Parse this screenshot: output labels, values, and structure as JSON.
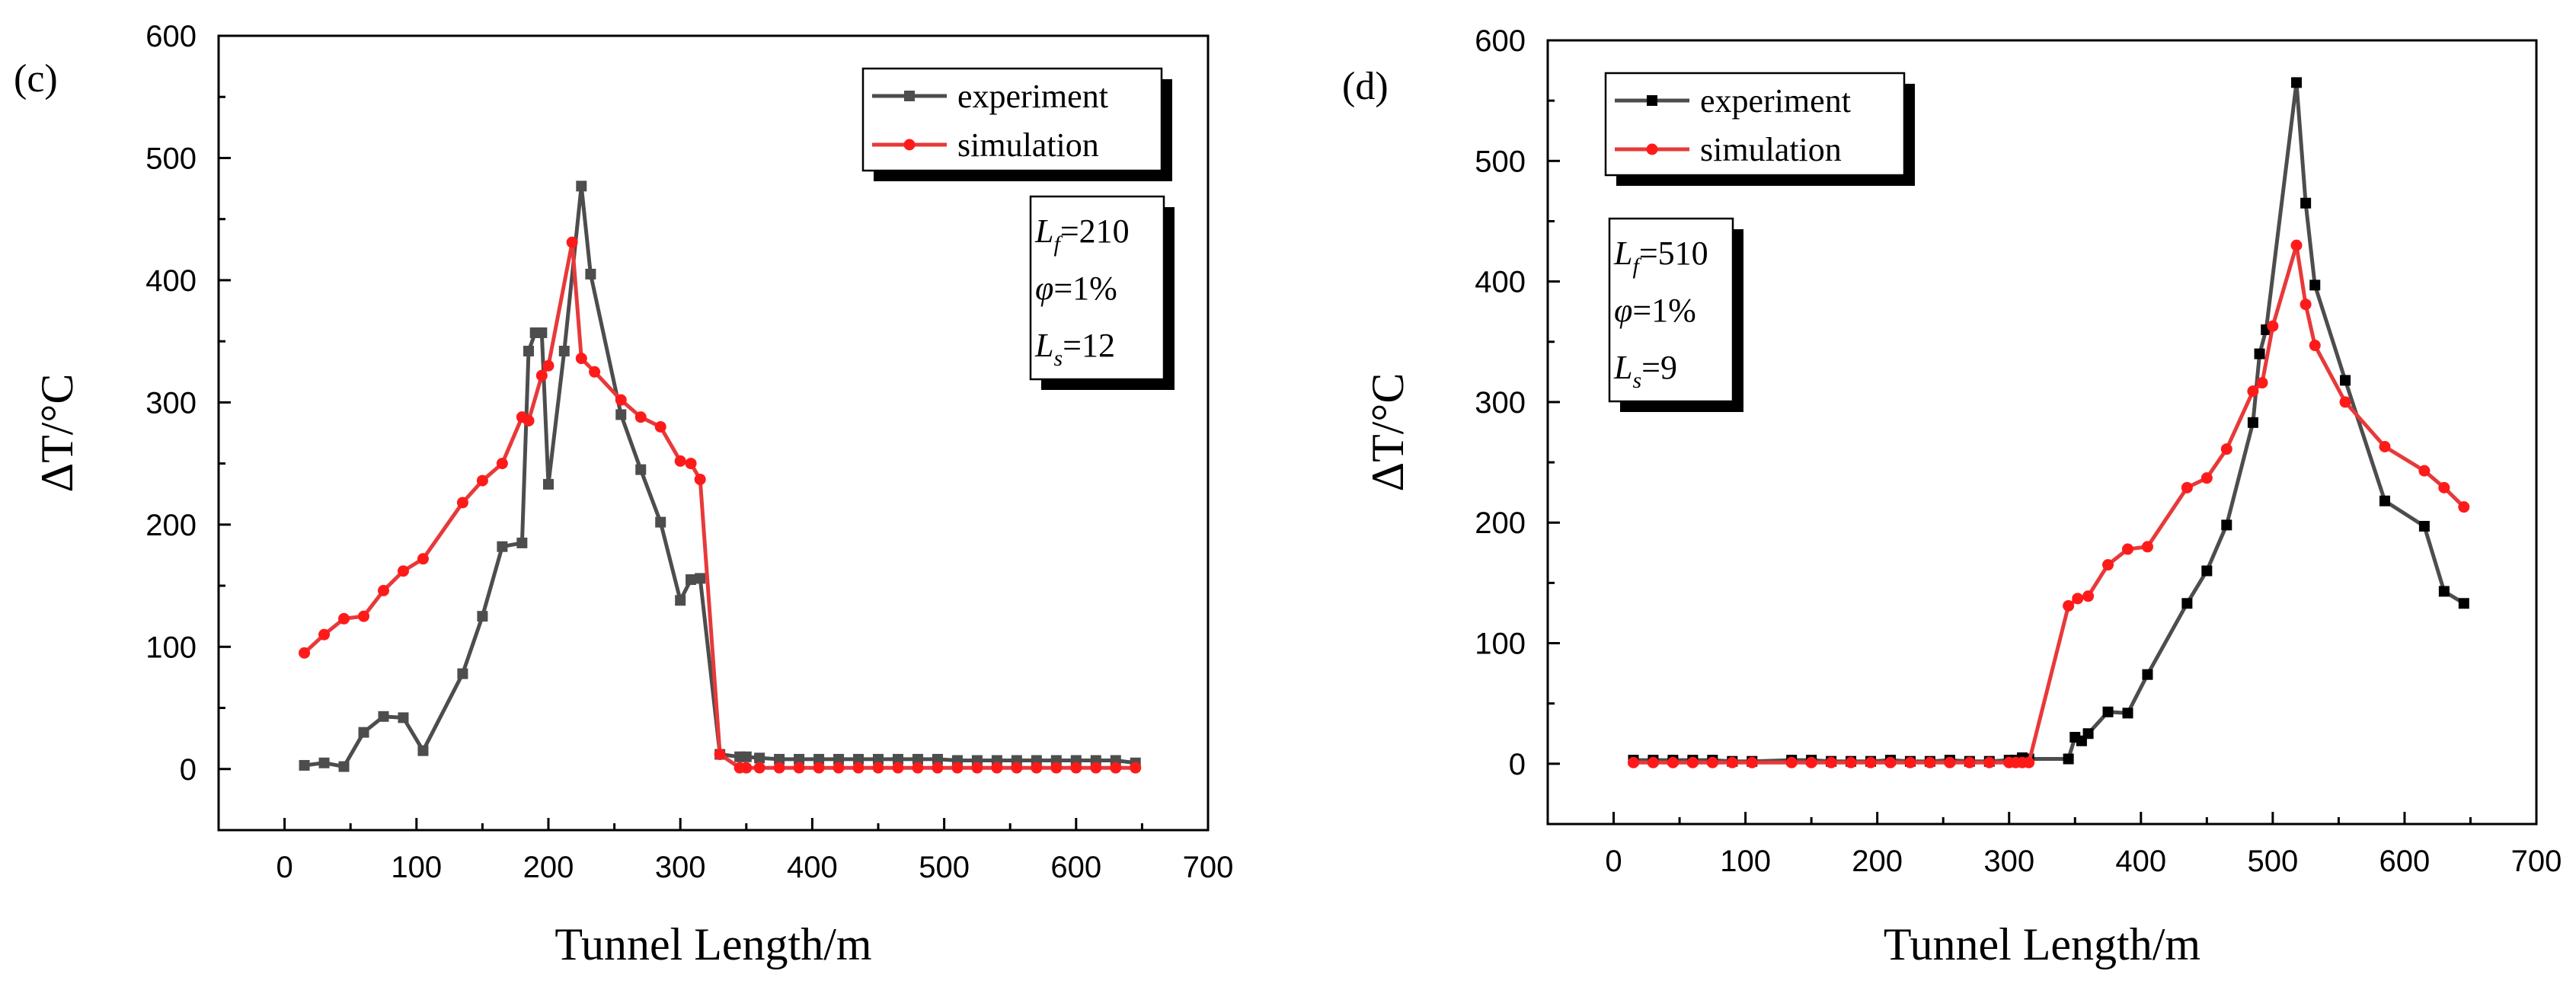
{
  "chart_data": [
    {
      "type": "line",
      "panel_label": "(c)",
      "xlabel": "Tunnel Length/m",
      "ylabel": "ΔT/°C",
      "xlim": [
        -50,
        700
      ],
      "ylim": [
        -50,
        600
      ],
      "xticks": [
        "0",
        "100",
        "200",
        "300",
        "400",
        "500",
        "600",
        "700"
      ],
      "yticks": [
        "0",
        "100",
        "200",
        "300",
        "400",
        "500",
        "600"
      ],
      "legend": {
        "position": "top-right",
        "entries": [
          "experiment",
          "simulation"
        ]
      },
      "params": [
        {
          "sym": "L",
          "sub": "f",
          "val": "=210"
        },
        {
          "sym": "φ",
          "sub": "",
          "val": "=1%"
        },
        {
          "sym": "L",
          "sub": "s",
          "val": "=12"
        }
      ],
      "series": [
        {
          "name": "experiment",
          "color": "#4d4d4d",
          "marker": "square",
          "x": [
            15,
            30,
            45,
            60,
            75,
            90,
            105,
            135,
            150,
            165,
            180,
            185,
            190,
            195,
            200,
            212,
            225,
            232,
            255,
            270,
            285,
            300,
            308,
            315,
            330,
            345,
            350,
            360,
            375,
            390,
            405,
            420,
            435,
            450,
            465,
            480,
            495,
            510,
            525,
            540,
            555,
            570,
            585,
            600,
            615,
            630,
            645
          ],
          "y": [
            3,
            5,
            2,
            30,
            43,
            42,
            15,
            78,
            125,
            182,
            185,
            342,
            357,
            357,
            233,
            342,
            477,
            405,
            290,
            245,
            202,
            138,
            155,
            156,
            12,
            10,
            10,
            9,
            8,
            8,
            8,
            8,
            8,
            8,
            8,
            8,
            8,
            7,
            7,
            7,
            7,
            7,
            7,
            7,
            7,
            7,
            5
          ]
        },
        {
          "name": "simulation",
          "color": "#e8393a",
          "marker": "circle",
          "x": [
            15,
            30,
            45,
            60,
            75,
            90,
            105,
            135,
            150,
            165,
            180,
            185,
            195,
            200,
            218,
            225,
            235,
            255,
            270,
            285,
            300,
            308,
            315,
            330,
            345,
            350,
            360,
            375,
            390,
            405,
            420,
            435,
            450,
            465,
            480,
            495,
            510,
            525,
            540,
            555,
            570,
            585,
            600,
            615,
            630,
            645
          ],
          "y": [
            95,
            110,
            123,
            125,
            146,
            162,
            172,
            218,
            236,
            250,
            288,
            285,
            322,
            330,
            431,
            336,
            325,
            302,
            288,
            280,
            252,
            250,
            237,
            12,
            1,
            1,
            1,
            1,
            1,
            1,
            1,
            1,
            1,
            1,
            1,
            1,
            1,
            1,
            1,
            1,
            1,
            1,
            1,
            1,
            1,
            1
          ]
        }
      ]
    },
    {
      "type": "line",
      "panel_label": "(d)",
      "xlabel": "Tunnel Length/m",
      "ylabel": "ΔT/°C",
      "xlim": [
        -50,
        700
      ],
      "ylim": [
        -50,
        600
      ],
      "xticks": [
        "0",
        "100",
        "200",
        "300",
        "400",
        "500",
        "600",
        "700"
      ],
      "yticks": [
        "0",
        "100",
        "200",
        "300",
        "400",
        "500",
        "600"
      ],
      "legend": {
        "position": "top-left",
        "entries": [
          "experiment",
          "simulation"
        ]
      },
      "params": [
        {
          "sym": "L",
          "sub": "f",
          "val": "=510"
        },
        {
          "sym": "φ",
          "sub": "",
          "val": "=1%"
        },
        {
          "sym": "L",
          "sub": "s",
          "val": "=9"
        }
      ],
      "series": [
        {
          "name": "experiment",
          "color": "#4d4d4d",
          "marker": "square",
          "x": [
            15,
            30,
            45,
            60,
            75,
            90,
            105,
            135,
            150,
            165,
            180,
            195,
            210,
            225,
            240,
            255,
            270,
            285,
            300,
            305,
            310,
            315,
            345,
            350,
            355,
            360,
            375,
            390,
            405,
            435,
            450,
            465,
            485,
            490,
            495,
            518,
            525,
            532,
            555,
            585,
            615,
            630,
            645
          ],
          "y": [
            3,
            3,
            3,
            3,
            3,
            2,
            2,
            3,
            3,
            2,
            2,
            2,
            3,
            2,
            2,
            3,
            2,
            2,
            3,
            3,
            5,
            4,
            4,
            22,
            19,
            25,
            43,
            42,
            74,
            133,
            160,
            198,
            283,
            340,
            360,
            565,
            465,
            397,
            318,
            218,
            197,
            143,
            133
          ]
        },
        {
          "name": "simulation",
          "color": "#e8393a",
          "marker": "circle",
          "x": [
            15,
            30,
            45,
            60,
            75,
            90,
            105,
            135,
            150,
            165,
            180,
            195,
            210,
            225,
            240,
            255,
            270,
            285,
            300,
            305,
            310,
            315,
            345,
            352,
            360,
            375,
            390,
            405,
            435,
            450,
            465,
            485,
            492,
            500,
            518,
            525,
            532,
            555,
            585,
            615,
            630,
            645
          ],
          "y": [
            1,
            1,
            1,
            1,
            1,
            1,
            1,
            1,
            1,
            1,
            1,
            1,
            1,
            1,
            1,
            1,
            1,
            1,
            1,
            1,
            1,
            1,
            131,
            137,
            139,
            165,
            178,
            180,
            229,
            237,
            261,
            309,
            316,
            363,
            430,
            381,
            347,
            300,
            263,
            243,
            229,
            213
          ]
        }
      ]
    }
  ]
}
